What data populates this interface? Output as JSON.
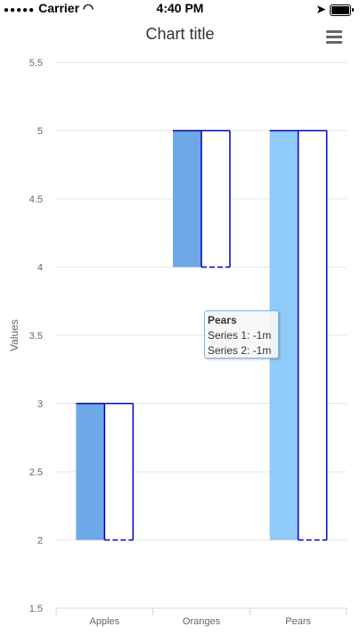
{
  "status_bar": {
    "carrier": "Carrier",
    "time": "4:40 PM"
  },
  "colors": {
    "series1_light": "#90caf9",
    "series1_dark": "#6fa8e6",
    "series2_border": "#0000cc",
    "grid": "#e6e6e6"
  },
  "chart_data": {
    "type": "bar",
    "title": "Chart title",
    "xlabel": "",
    "ylabel": "Values",
    "categories": [
      "Apples",
      "Oranges",
      "Pears"
    ],
    "ylim": [
      1.5,
      5.5
    ],
    "y_ticks": [
      "5.5",
      "5",
      "4.5",
      "4",
      "3.5",
      "3",
      "2.5",
      "2",
      "1.5"
    ],
    "grid": true,
    "series": [
      {
        "low": [
          2,
          4,
          2
        ],
        "high": [
          3,
          5,
          5
        ]
      },
      {
        "low": [
          2,
          4,
          2
        ],
        "high": [
          3,
          5,
          5
        ]
      }
    ],
    "tooltip": {
      "title": "Pears",
      "lines": [
        "Series 1: -1m",
        "Series 2: -1m"
      ]
    }
  }
}
